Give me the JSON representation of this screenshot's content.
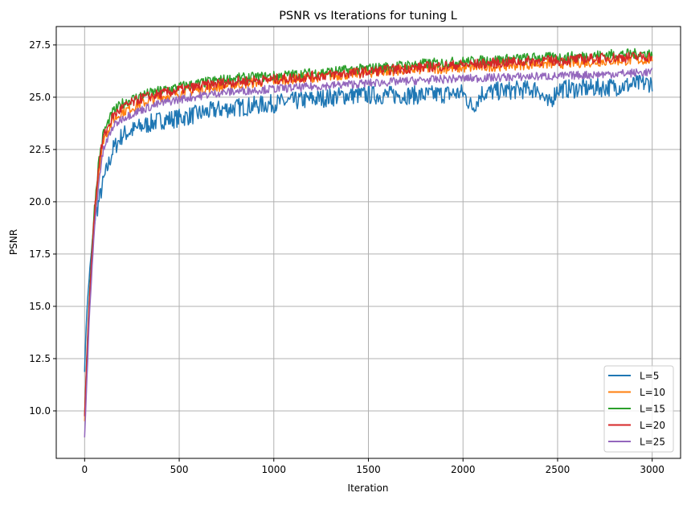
{
  "chart_data": {
    "type": "line",
    "title": "PSNR vs Iterations for tuning L",
    "xlabel": "Iteration",
    "ylabel": "PSNR",
    "xlim": [
      -150,
      3150
    ],
    "ylim": [
      7.73,
      28.38
    ],
    "xticks": [
      0,
      500,
      1000,
      1500,
      2000,
      2500,
      3000
    ],
    "xtick_labels": [
      "0",
      "500",
      "1000",
      "1500",
      "2000",
      "2500",
      "3000"
    ],
    "yticks": [
      10.0,
      12.5,
      15.0,
      17.5,
      20.0,
      22.5,
      25.0,
      27.5
    ],
    "ytick_labels": [
      "10.0",
      "12.5",
      "15.0",
      "17.5",
      "20.0",
      "22.5",
      "25.0",
      "27.5"
    ],
    "grid": true,
    "legend_position": "lower-right",
    "x": [
      0,
      10,
      25,
      50,
      75,
      100,
      150,
      200,
      300,
      400,
      500,
      600,
      700,
      800,
      900,
      1000,
      1200,
      1400,
      1600,
      1800,
      2000,
      2050,
      2100,
      2200,
      2400,
      2450,
      2500,
      2600,
      2800,
      3000
    ],
    "series": [
      {
        "name": "L=5",
        "color": "#1f77b4",
        "values": [
          12,
          14.5,
          16.5,
          19,
          20,
          21,
          22.5,
          23.2,
          23.6,
          23.9,
          24.0,
          24.2,
          24.4,
          24.5,
          24.6,
          24.7,
          24.9,
          25.1,
          25.1,
          25.1,
          25.2,
          24.5,
          25.2,
          25.3,
          25.4,
          24.6,
          25.4,
          25.4,
          25.5,
          25.7
        ]
      },
      {
        "name": "L=10",
        "color": "#ff7f0e",
        "values": [
          9.5,
          12,
          15,
          19,
          21.5,
          23,
          23.9,
          24.3,
          24.7,
          25.0,
          25.2,
          25.35,
          25.5,
          25.6,
          25.7,
          25.8,
          25.95,
          26.1,
          26.25,
          26.35,
          26.4,
          26.42,
          26.45,
          26.5,
          26.6,
          26.6,
          26.6,
          26.65,
          26.75,
          26.8
        ]
      },
      {
        "name": "L=15",
        "color": "#2ca02c",
        "values": [
          9.8,
          12.3,
          15.5,
          19.5,
          22,
          23.3,
          24.3,
          24.7,
          25.1,
          25.3,
          25.5,
          25.65,
          25.8,
          25.9,
          25.95,
          26.0,
          26.15,
          26.3,
          26.45,
          26.6,
          26.7,
          26.72,
          26.75,
          26.8,
          26.9,
          26.9,
          26.9,
          26.95,
          27.05,
          27.1
        ]
      },
      {
        "name": "L=20",
        "color": "#d62728",
        "values": [
          9.7,
          12.2,
          15.3,
          19.3,
          21.8,
          23.1,
          24.1,
          24.5,
          24.95,
          25.15,
          25.35,
          25.5,
          25.65,
          25.75,
          25.8,
          25.85,
          26.0,
          26.15,
          26.3,
          26.45,
          26.55,
          26.57,
          26.6,
          26.65,
          26.75,
          26.75,
          26.75,
          26.8,
          26.9,
          26.95
        ]
      },
      {
        "name": "L=25",
        "color": "#9467bd",
        "values": [
          8.7,
          11,
          14.5,
          18.5,
          21,
          22.5,
          23.6,
          24.0,
          24.4,
          24.7,
          24.9,
          25.05,
          25.2,
          25.28,
          25.34,
          25.4,
          25.5,
          25.62,
          25.72,
          25.82,
          25.9,
          25.9,
          25.92,
          25.95,
          26.0,
          26.0,
          26.0,
          26.05,
          26.12,
          26.2
        ]
      }
    ]
  }
}
